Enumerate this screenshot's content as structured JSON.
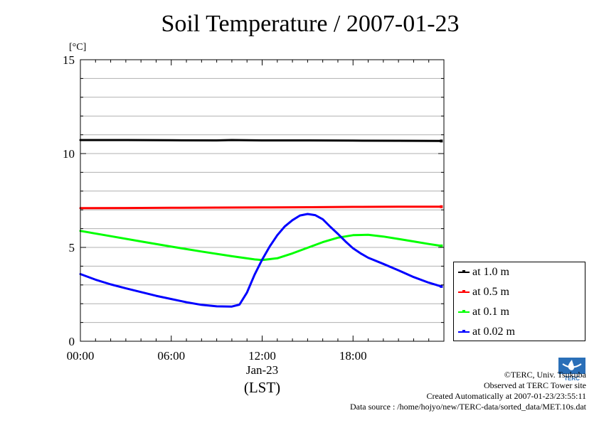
{
  "title": "Soil Temperature / 2007-01-23",
  "credits": {
    "copyright": "©TERC, Univ. Tsukuba",
    "observed": "Observed at TERC Tower site",
    "created": "Created Automatically at 2007-01-23/23:55:11",
    "source": "Data source : /home/hojyo/new/TERC-data/sorted_data/MET.10s.dat"
  },
  "logo_text": "TERC",
  "chart_data": {
    "type": "line",
    "title": "Soil Temperature / 2007-01-23",
    "ylabel": "[°C]",
    "xlabel": "(LST)",
    "date_label": "Jan-23",
    "ylim": [
      0,
      15
    ],
    "xlim": [
      0,
      24
    ],
    "yticks": [
      0,
      5,
      10,
      15
    ],
    "xticks": [
      {
        "value": 0,
        "label": "00:00"
      },
      {
        "value": 6,
        "label": "06:00"
      },
      {
        "value": 12,
        "label": "12:00"
      },
      {
        "value": 18,
        "label": "18:00"
      }
    ],
    "grid": true,
    "legend_position": "right",
    "series": [
      {
        "name": "at 1.0 m",
        "color": "#000000",
        "points": [
          [
            0,
            10.72
          ],
          [
            3,
            10.72
          ],
          [
            6,
            10.71
          ],
          [
            9,
            10.7
          ],
          [
            10,
            10.72
          ],
          [
            12,
            10.7
          ],
          [
            15,
            10.7
          ],
          [
            18,
            10.69
          ],
          [
            21,
            10.68
          ],
          [
            23.83,
            10.67
          ]
        ]
      },
      {
        "name": "at 0.5 m",
        "color": "#ff0000",
        "points": [
          [
            0,
            7.09
          ],
          [
            3,
            7.1
          ],
          [
            6,
            7.11
          ],
          [
            9,
            7.12
          ],
          [
            12,
            7.13
          ],
          [
            15,
            7.14
          ],
          [
            18,
            7.16
          ],
          [
            21,
            7.17
          ],
          [
            23.83,
            7.17
          ]
        ]
      },
      {
        "name": "at 0.1 m",
        "color": "#00ff00",
        "points": [
          [
            0,
            5.88
          ],
          [
            2,
            5.6
          ],
          [
            4,
            5.32
          ],
          [
            6,
            5.04
          ],
          [
            8,
            4.78
          ],
          [
            10,
            4.53
          ],
          [
            11.5,
            4.36
          ],
          [
            12,
            4.33
          ],
          [
            13,
            4.42
          ],
          [
            14,
            4.68
          ],
          [
            15,
            4.98
          ],
          [
            16,
            5.28
          ],
          [
            17,
            5.52
          ],
          [
            18,
            5.65
          ],
          [
            19,
            5.67
          ],
          [
            20,
            5.58
          ],
          [
            21,
            5.45
          ],
          [
            22,
            5.32
          ],
          [
            23,
            5.18
          ],
          [
            23.83,
            5.08
          ]
        ]
      },
      {
        "name": "at 0.02 m",
        "color": "#0000ff",
        "points": [
          [
            0,
            3.58
          ],
          [
            1,
            3.28
          ],
          [
            2,
            3.03
          ],
          [
            3,
            2.82
          ],
          [
            4,
            2.62
          ],
          [
            5,
            2.42
          ],
          [
            6,
            2.25
          ],
          [
            7,
            2.08
          ],
          [
            8,
            1.94
          ],
          [
            9,
            1.86
          ],
          [
            10,
            1.85
          ],
          [
            10.5,
            1.95
          ],
          [
            11,
            2.6
          ],
          [
            11.5,
            3.55
          ],
          [
            12,
            4.35
          ],
          [
            12.5,
            5.05
          ],
          [
            13,
            5.65
          ],
          [
            13.5,
            6.12
          ],
          [
            14,
            6.45
          ],
          [
            14.5,
            6.7
          ],
          [
            15,
            6.78
          ],
          [
            15.5,
            6.72
          ],
          [
            16,
            6.5
          ],
          [
            16.5,
            6.1
          ],
          [
            17,
            5.72
          ],
          [
            17.5,
            5.32
          ],
          [
            18,
            4.95
          ],
          [
            18.5,
            4.68
          ],
          [
            19,
            4.45
          ],
          [
            20,
            4.12
          ],
          [
            21,
            3.78
          ],
          [
            22,
            3.42
          ],
          [
            23,
            3.12
          ],
          [
            23.83,
            2.92
          ]
        ]
      }
    ]
  }
}
